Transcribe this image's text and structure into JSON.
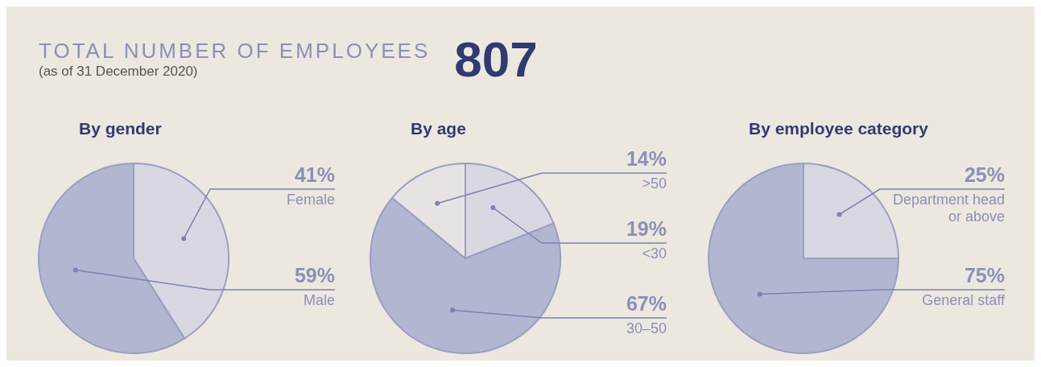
{
  "chart_data": [
    {
      "type": "other",
      "title": "TOTAL NUMBER OF EMPLOYEES",
      "subtitle": "(as of 31 December 2020)",
      "annotations": [
        "807"
      ]
    },
    {
      "type": "pie",
      "title": "By gender",
      "categories": [
        "Female",
        "Male"
      ],
      "values": [
        41,
        59
      ],
      "colors": [
        "#d9d8e2",
        "#b3b6d0"
      ],
      "value_labels": [
        "41%",
        "59%"
      ]
    },
    {
      "type": "pie",
      "title": "By age",
      "categories": [
        "<30",
        "30–50",
        ">50"
      ],
      "values": [
        19,
        67,
        14
      ],
      "colors": [
        "#d9d8e2",
        "#b3b6d0",
        "#e6e3e2"
      ],
      "value_labels": [
        "19%",
        "67%",
        "14%"
      ]
    },
    {
      "type": "pie",
      "title": "By employee category",
      "categories": [
        "Department head or above",
        "General staff"
      ],
      "values": [
        25,
        75
      ],
      "colors": [
        "#d9d8e2",
        "#b3b6d0"
      ],
      "value_labels": [
        "25%",
        "75%"
      ]
    }
  ]
}
